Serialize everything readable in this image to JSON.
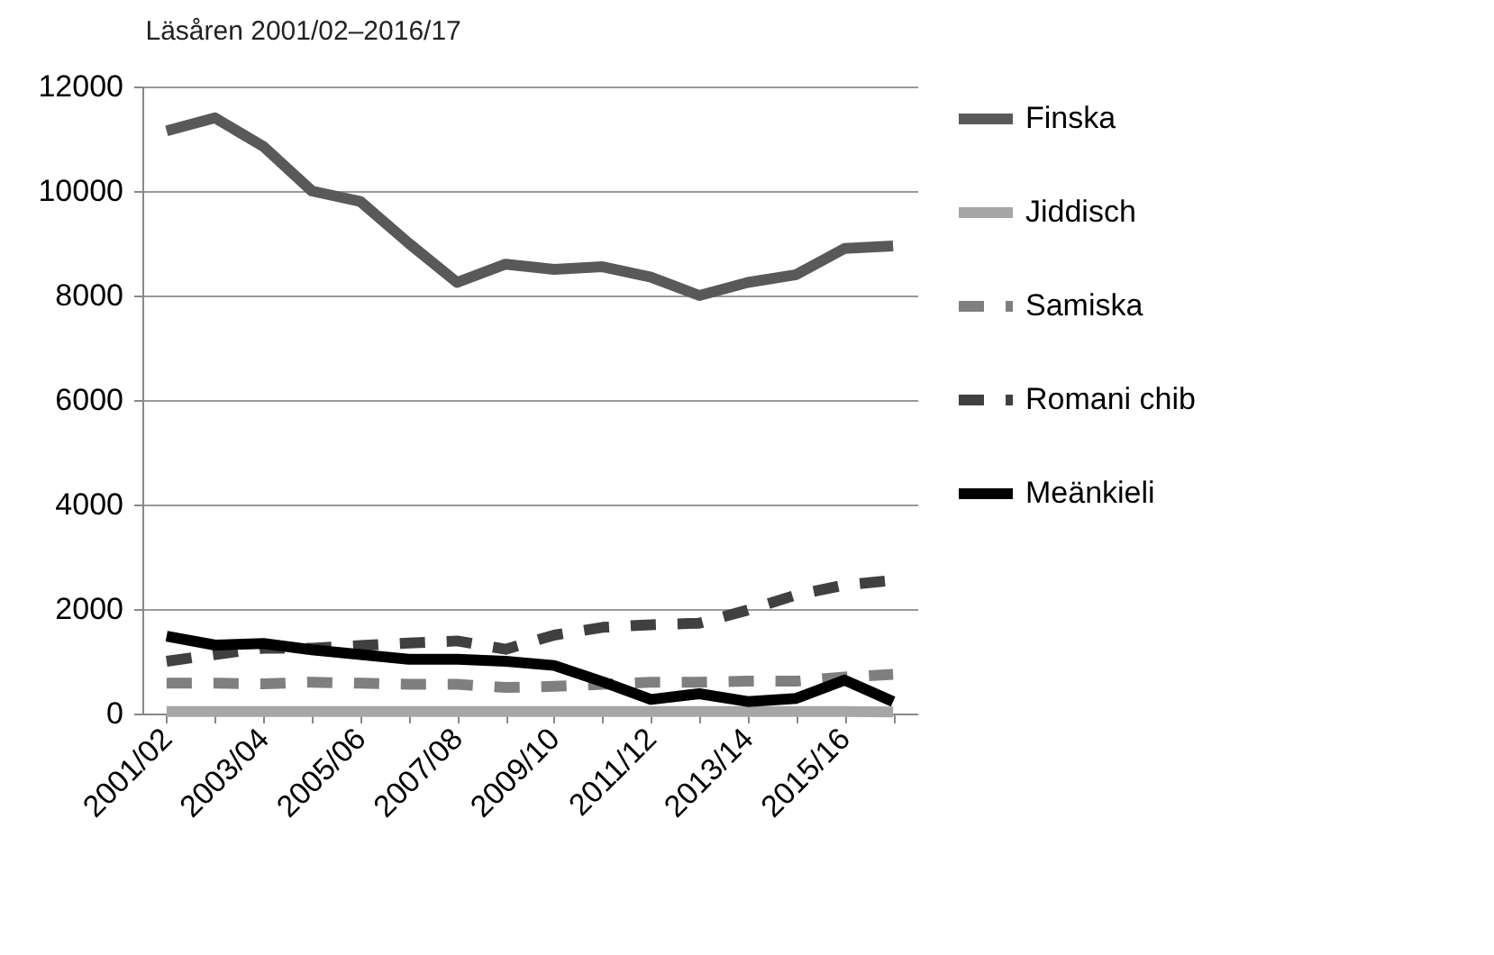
{
  "chart_data": {
    "type": "line",
    "title": "Läsåren 2001/02–2016/17",
    "categories": [
      "2001/02",
      null,
      "2003/04",
      null,
      "2005/06",
      null,
      "2007/08",
      null,
      "2009/10",
      null,
      "2011/12",
      null,
      "2013/14",
      null,
      "2015/16",
      null
    ],
    "series": [
      {
        "name": "Finska",
        "color": "#595959",
        "line_style": "solid",
        "values": [
          11150,
          11400,
          10850,
          10000,
          9800,
          9000,
          8250,
          8600,
          8500,
          8550,
          8350,
          8000,
          8250,
          8400,
          8900,
          8950
        ]
      },
      {
        "name": "Jiddisch",
        "color": "#a6a6a6",
        "line_style": "solid",
        "values": [
          40,
          40,
          40,
          40,
          40,
          40,
          40,
          40,
          40,
          40,
          40,
          40,
          40,
          40,
          40,
          30
        ]
      },
      {
        "name": "Samiska",
        "color": "#7f7f7f",
        "line_style": "dashed",
        "values": [
          580,
          580,
          570,
          600,
          580,
          560,
          560,
          500,
          520,
          560,
          600,
          600,
          620,
          620,
          700,
          750
        ]
      },
      {
        "name": "Romani chib",
        "color": "#404040",
        "line_style": "dashed",
        "values": [
          1000,
          1130,
          1250,
          1250,
          1300,
          1350,
          1390,
          1230,
          1500,
          1650,
          1700,
          1730,
          1980,
          2270,
          2460,
          2550
        ]
      },
      {
        "name": "Meänkieli",
        "color": "#000000",
        "line_style": "solid",
        "values": [
          1480,
          1310,
          1340,
          1220,
          1130,
          1040,
          1040,
          1000,
          920,
          610,
          270,
          380,
          230,
          290,
          640,
          230
        ]
      }
    ],
    "ylim": [
      0,
      12000
    ],
    "yticks": [
      0,
      2000,
      4000,
      6000,
      8000,
      10000,
      12000
    ],
    "grid": "y",
    "legend": "right"
  }
}
